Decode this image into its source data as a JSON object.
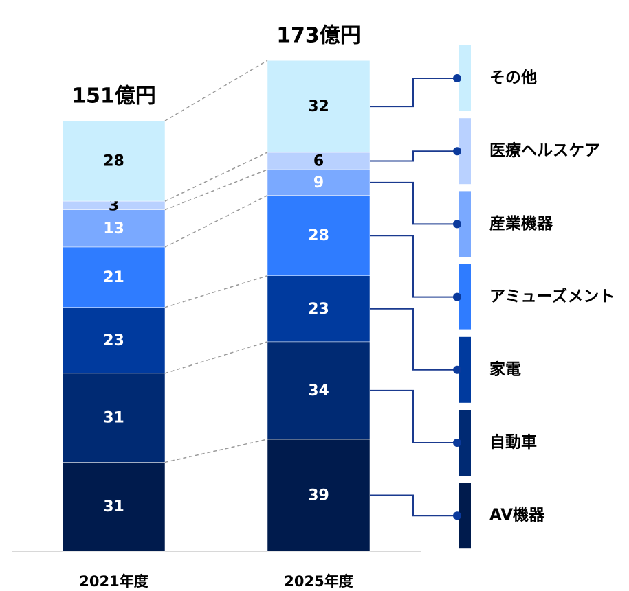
{
  "chart_data": {
    "type": "stacked_bar",
    "categories": [
      "2021年度",
      "2025年度"
    ],
    "total_labels": [
      "151億円",
      "173億円"
    ],
    "series": [
      {
        "name": "AV機器",
        "color": "#001b4d",
        "values": [
          31,
          39
        ]
      },
      {
        "name": "自動車",
        "color": "#002a73",
        "values": [
          31,
          34
        ]
      },
      {
        "name": "家電",
        "color": "#003a9e",
        "values": [
          23,
          23
        ]
      },
      {
        "name": "アミューズメント",
        "color": "#2f7cff",
        "values": [
          21,
          28
        ]
      },
      {
        "name": "産業機器",
        "color": "#7aa9ff",
        "values": [
          13,
          9
        ]
      },
      {
        "name": "医療ヘルスケア",
        "color": "#b9d1ff",
        "values": [
          3,
          6
        ]
      },
      {
        "name": "その他",
        "color": "#c9eefe",
        "values": [
          28,
          32
        ]
      }
    ]
  }
}
